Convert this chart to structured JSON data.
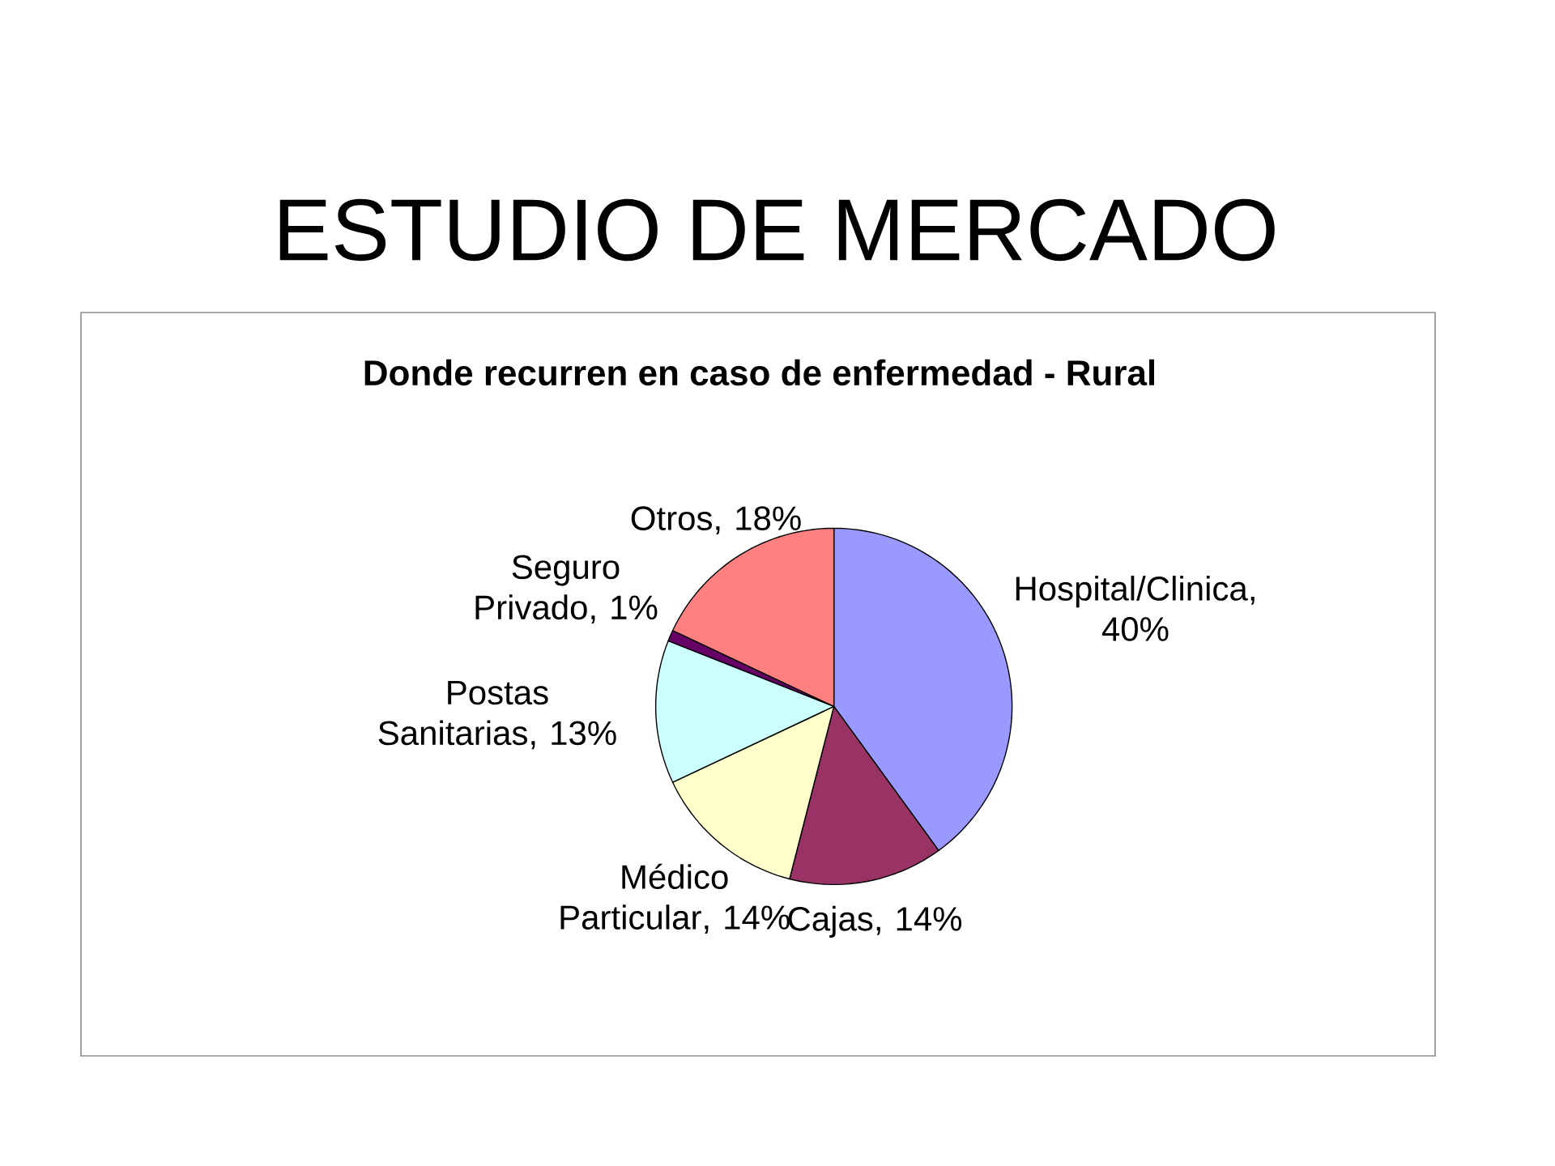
{
  "chart_data": {
    "type": "pie",
    "title": "ESTUDIO DE MERCADO",
    "subtitle": "Donde recurren en caso de enfermedad - Rural",
    "categories": [
      "Hospital/Clinica",
      "Cajas",
      "Médico Particular",
      "Postas Sanitarias",
      "Seguro Privado",
      "Otros"
    ],
    "values": [
      40,
      14,
      14,
      13,
      1,
      18
    ],
    "value_labels": [
      ", 40%",
      ", 14%",
      ", 14%",
      ", 13%",
      ", 1%",
      ", 18%"
    ],
    "colors": [
      "#9999ff",
      "#993366",
      "#ffffcc",
      "#ccffff",
      "#660066",
      "#ff8080"
    ]
  }
}
